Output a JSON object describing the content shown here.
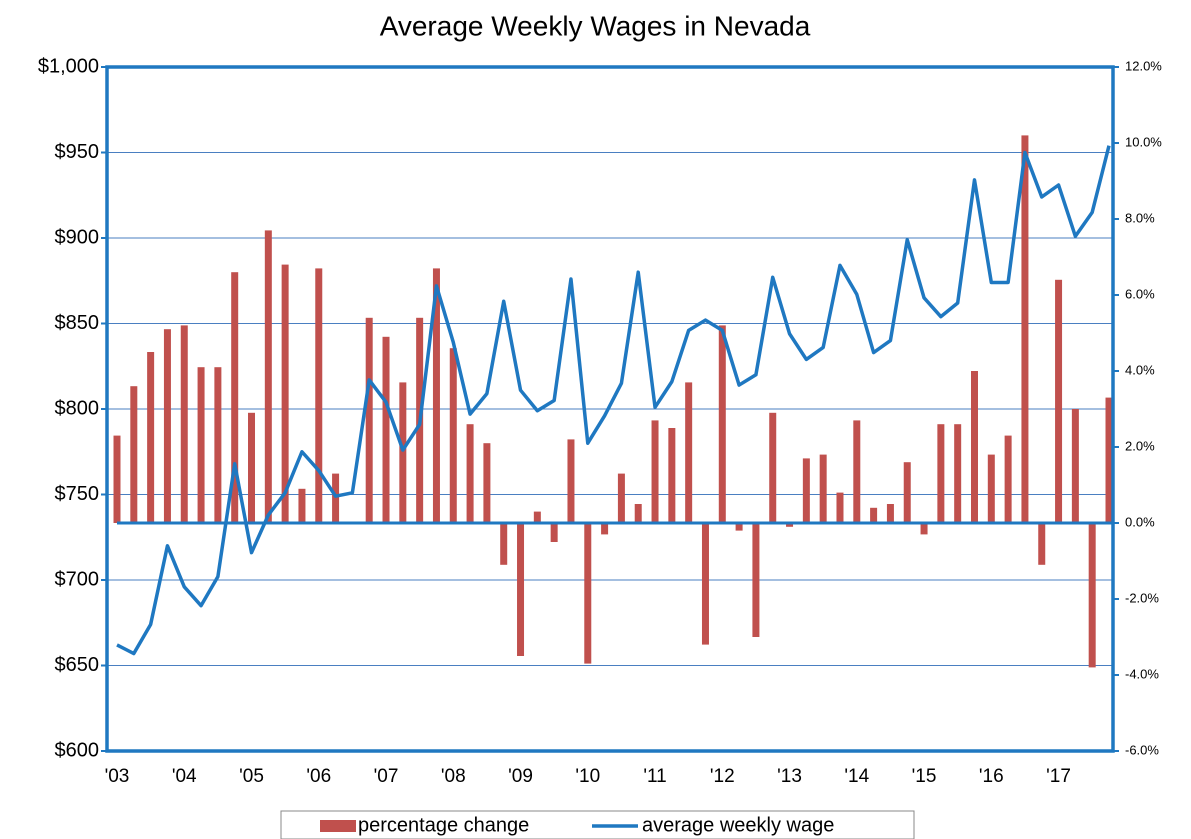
{
  "chart_data": {
    "type": "bar-line",
    "title": "Average Weekly Wages in Nevada",
    "categories": [
      "'03",
      null,
      null,
      null,
      "'04",
      null,
      null,
      null,
      "'05",
      null,
      null,
      null,
      "'06",
      null,
      null,
      null,
      "'07",
      null,
      null,
      null,
      "'08",
      null,
      null,
      null,
      "'09",
      null,
      null,
      null,
      "'10",
      null,
      null,
      null,
      "'11",
      null,
      null,
      null,
      "'12",
      null,
      null,
      null,
      "'13",
      null,
      null,
      null,
      "'14",
      null,
      null,
      null,
      "'15",
      null,
      null,
      null,
      "'16",
      null,
      null,
      null,
      "'17",
      null,
      null,
      null
    ],
    "series": [
      {
        "name": "percentage change",
        "type": "bar",
        "axis": "y2",
        "color": "#c0504d",
        "values": [
          2.3,
          3.6,
          4.5,
          5.1,
          5.2,
          4.1,
          4.1,
          6.6,
          2.9,
          7.7,
          6.8,
          0.9,
          6.7,
          1.3,
          0,
          5.4,
          4.9,
          3.7,
          5.4,
          6.7,
          4.6,
          2.6,
          2.1,
          -1.1,
          -3.5,
          0.3,
          -0.5,
          2.2,
          -3.7,
          -0.3,
          1.3,
          0.5,
          2.7,
          2.5,
          3.7,
          -3.2,
          5.2,
          -0.2,
          -3.0,
          2.9,
          -0.1,
          1.7,
          1.8,
          0.8,
          2.7,
          0.4,
          0.5,
          1.6,
          -0.3,
          2.6,
          2.6,
          4.0,
          1.8,
          2.3,
          10.2,
          -1.1,
          6.4,
          3.0,
          -3.8,
          3.3
        ]
      },
      {
        "name": "average weekly wage",
        "type": "line",
        "axis": "y",
        "color": "#1f78c1",
        "values": [
          662,
          657,
          674,
          720,
          696,
          685,
          702,
          768,
          716,
          738,
          751,
          775,
          764,
          749,
          751,
          817,
          804,
          776,
          791,
          872,
          839,
          797,
          809,
          863,
          811,
          799,
          805,
          876,
          780,
          796,
          815,
          880,
          801,
          816,
          846,
          852,
          846,
          814,
          820,
          877,
          844,
          829,
          836,
          884,
          867,
          833,
          840,
          899,
          865,
          854,
          862,
          934,
          874,
          874,
          950,
          924,
          931,
          901,
          915,
          954
        ]
      }
    ],
    "ylim": [
      600,
      1000
    ],
    "yticks": [
      {
        "value": 600,
        "label": "$600"
      },
      {
        "value": 650,
        "label": "$650"
      },
      {
        "value": 700,
        "label": "$700"
      },
      {
        "value": 750,
        "label": "$750"
      },
      {
        "value": 800,
        "label": "$800"
      },
      {
        "value": 850,
        "label": "$850"
      },
      {
        "value": 900,
        "label": "$900"
      },
      {
        "value": 950,
        "label": "$950"
      },
      {
        "value": 1000,
        "label": "$1,000"
      }
    ],
    "y2lim": [
      -6,
      12
    ],
    "y2ticks": [
      {
        "value": -6,
        "label": "-6.0%"
      },
      {
        "value": -4,
        "label": "-4.0%"
      },
      {
        "value": -2,
        "label": "-2.0%"
      },
      {
        "value": 0,
        "label": "0.0%"
      },
      {
        "value": 2,
        "label": "2.0%"
      },
      {
        "value": 4,
        "label": "4.0%"
      },
      {
        "value": 6,
        "label": "6.0%"
      },
      {
        "value": 8,
        "label": "8.0%"
      },
      {
        "value": 10,
        "label": "10.0%"
      },
      {
        "value": 12,
        "label": "12.0%"
      }
    ],
    "grid": true,
    "legend": "bottom"
  }
}
